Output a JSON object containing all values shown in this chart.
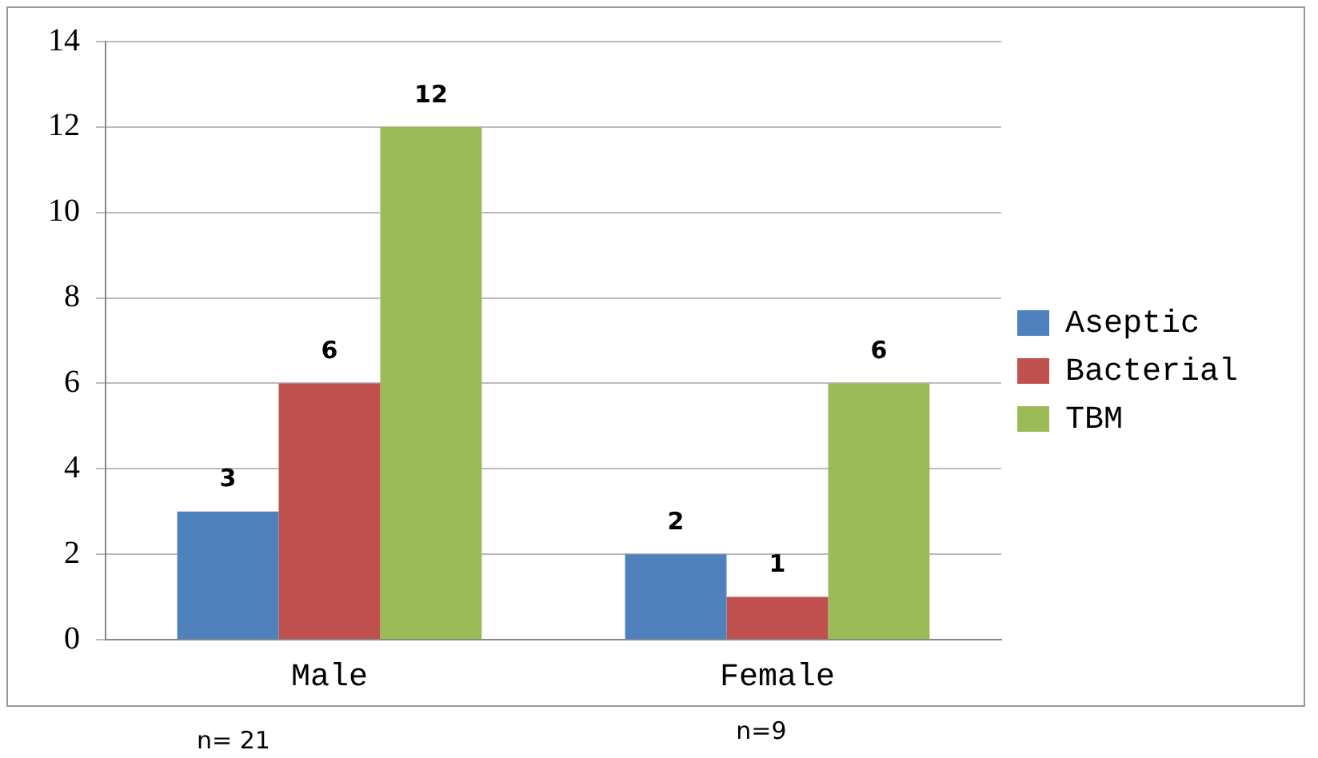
{
  "chart_data": {
    "type": "bar",
    "categories": [
      "Male",
      "Female"
    ],
    "series": [
      {
        "name": "Aseptic",
        "color": "#4f81bd",
        "values": [
          3,
          2
        ]
      },
      {
        "name": "Bacterial",
        "color": "#c0504d",
        "values": [
          6,
          1
        ]
      },
      {
        "name": "TBM",
        "color": "#9bbb59",
        "values": [
          12,
          6
        ]
      }
    ],
    "ylim": [
      0,
      14
    ],
    "yticks": [
      0,
      2,
      4,
      6,
      8,
      10,
      12,
      14
    ],
    "grid": "y",
    "legend": "right",
    "data_labels": true,
    "annotations": [
      "n= 21",
      "n=9"
    ]
  }
}
